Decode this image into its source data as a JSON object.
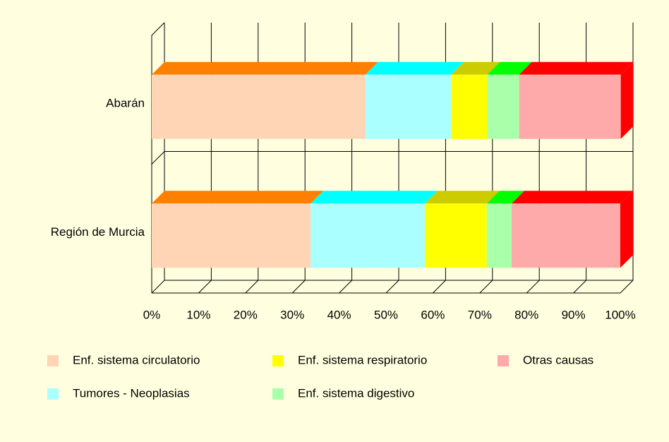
{
  "chart_data": {
    "type": "stacked_bar_3d",
    "categories": [
      "Abarán",
      "Región de Murcia"
    ],
    "series": [
      {
        "name": "Enf. sistema circulatorio",
        "color": "#FFD5B5",
        "shade_color": "#FF8000",
        "values": [
          45.6,
          33.9
        ]
      },
      {
        "name": "Tumores - Neoplasias",
        "color": "#AAFFFF",
        "shade_color": "#00FFFF",
        "values": [
          18.3,
          24.4
        ]
      },
      {
        "name": "Enf. sistema respiratorio",
        "color": "#FFFF00",
        "shade_color": "#CCCC00",
        "values": [
          7.7,
          13.2
        ]
      },
      {
        "name": "Enf. sistema digestivo",
        "color": "#AAFFAA",
        "shade_color": "#00FF00",
        "values": [
          6.8,
          5.3
        ]
      },
      {
        "name": "Otras causas",
        "color": "#FFAAAA",
        "shade_color": "#FF0000",
        "values": [
          21.7,
          23.2
        ]
      }
    ],
    "xlim": [
      0,
      100
    ],
    "xticks": [
      {
        "value": 0,
        "label": "0%"
      },
      {
        "value": 10,
        "label": "10%"
      },
      {
        "value": 20,
        "label": "20%"
      },
      {
        "value": 30,
        "label": "30%"
      },
      {
        "value": 40,
        "label": "40%"
      },
      {
        "value": 50,
        "label": "50%"
      },
      {
        "value": 60,
        "label": "60%"
      },
      {
        "value": 70,
        "label": "70%"
      },
      {
        "value": 80,
        "label": "80%"
      },
      {
        "value": 90,
        "label": "90%"
      },
      {
        "value": 100,
        "label": "100%"
      }
    ],
    "grid": true,
    "legend": "bottom"
  }
}
